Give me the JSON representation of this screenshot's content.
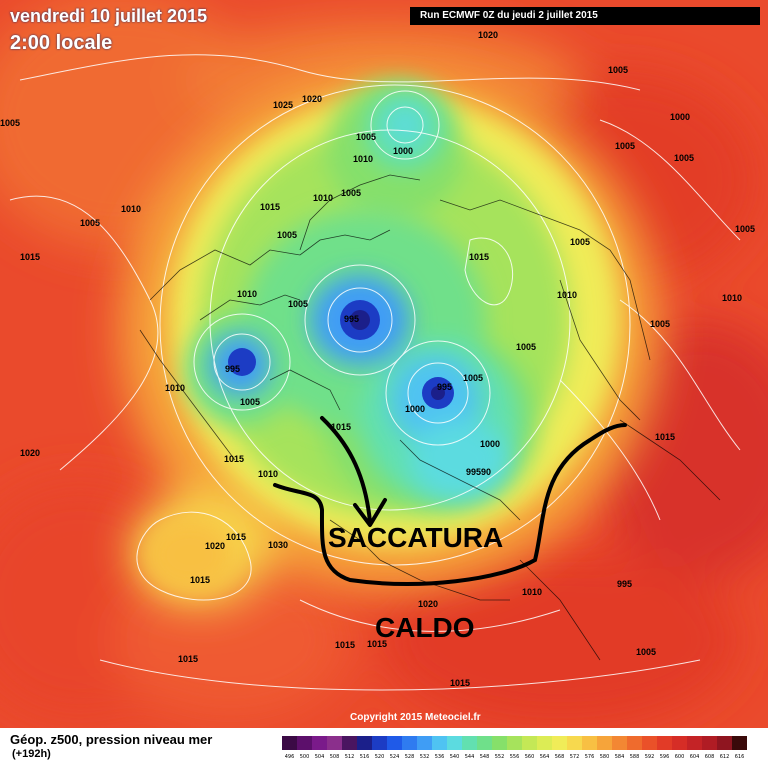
{
  "header": {
    "date": "vendredi 10 juillet 2015",
    "time": "2:00 locale",
    "run": "Run ECMWF 0Z du jeudi 2 juillet 2015"
  },
  "footer": {
    "title": "Géop. z500, pression niveau mer",
    "subtitle": "(+192h)",
    "copyright": "Copyright 2015 Meteociel.fr"
  },
  "annotations": {
    "trough": "SACCATURA",
    "heat": "CALDO"
  },
  "lows": [
    "995",
    "995",
    "995"
  ],
  "isobar_labels": [
    "1020",
    "1025",
    "1020",
    "1005",
    "1000",
    "1005",
    "1010",
    "1015",
    "1010",
    "1005",
    "1005",
    "1010",
    "1015",
    "1015",
    "1005",
    "1010",
    "1005",
    "1010",
    "1005",
    "1005",
    "1010",
    "1015",
    "1020",
    "1005",
    "1000",
    "1005",
    "1015",
    "1030",
    "1020",
    "1015",
    "1015",
    "1010",
    "995",
    "99590",
    "1000",
    "1010",
    "1015",
    "1020",
    "1015",
    "1015",
    "1015",
    "1010",
    "1005",
    "1005",
    "1015",
    "1000",
    "1005",
    "1005",
    "1005",
    "1005"
  ],
  "scale_labels": [
    "496",
    "500",
    "504",
    "508",
    "512",
    "516",
    "520",
    "524",
    "528",
    "532",
    "536",
    "540",
    "544",
    "548",
    "552",
    "556",
    "560",
    "564",
    "568",
    "572",
    "576",
    "580",
    "584",
    "588",
    "592",
    "596",
    "600",
    "604",
    "608",
    "612",
    "616"
  ],
  "scale_colors": [
    "#3b0a45",
    "#5c0f6b",
    "#7a1a8a",
    "#8b2f8c",
    "#4a1560",
    "#1b1f8a",
    "#1c3cc4",
    "#1f5ae8",
    "#2f7bf0",
    "#3f9df5",
    "#4fc3f2",
    "#5cdbe0",
    "#62e0b0",
    "#6fe08a",
    "#86e06a",
    "#a6e35c",
    "#c4e856",
    "#dcec55",
    "#f0ec58",
    "#f7d94e",
    "#f8c043",
    "#f6a43a",
    "#f38733",
    "#ef6b2d",
    "#ea5129",
    "#e23b27",
    "#d62d26",
    "#c42326",
    "#b01c24",
    "#8f1520",
    "#3a0a0a"
  ]
}
